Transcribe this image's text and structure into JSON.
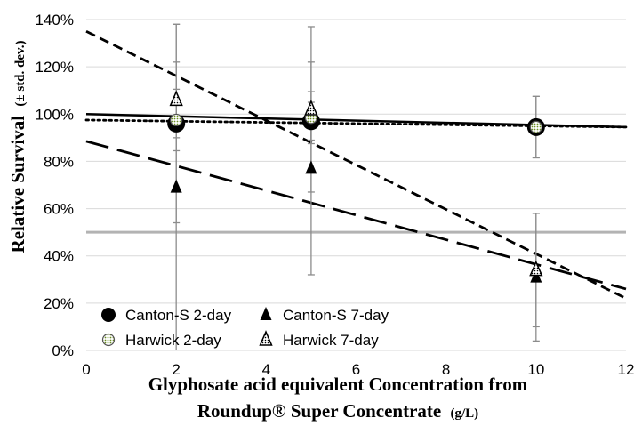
{
  "chart_data": {
    "type": "scatter",
    "title": "",
    "xlabel_line1": "Glyphosate acid equivalent Concentration from",
    "xlabel_line2_main": "Roundup® Super Concentrate",
    "xlabel_line2_unit": "(g/L)",
    "ylabel_main": "Relative Survival",
    "ylabel_unit": "(± std. dev.)",
    "xlim": [
      0,
      12
    ],
    "ylim": [
      0,
      140
    ],
    "x_ticks": [
      "0",
      "2",
      "4",
      "6",
      "8",
      "10",
      "12"
    ],
    "y_ticks": [
      "0%",
      "20%",
      "40%",
      "60%",
      "80%",
      "100%",
      "120%",
      "140%"
    ],
    "grid": "horizontal",
    "legend_position": "bottom-left",
    "reference_line": {
      "y": 50,
      "color": "#b3b3b3"
    },
    "series": [
      {
        "name": "Canton-S 2-day",
        "marker": "filled-circle",
        "color": "#000000",
        "points": [
          {
            "x": 2,
            "y": 96,
            "err": 42
          },
          {
            "x": 5,
            "y": 97,
            "err": 8
          },
          {
            "x": 10,
            "y": 94.5,
            "err": 13
          }
        ],
        "trend": {
          "style": "solid",
          "x": [
            0,
            12
          ],
          "y": [
            100,
            94.5
          ]
        }
      },
      {
        "name": "Canton-S 7-day",
        "marker": "filled-triangle",
        "color": "#000000",
        "points": [
          {
            "x": 2,
            "y": 69,
            "err": 69
          },
          {
            "x": 5,
            "y": 77,
            "err": 45
          },
          {
            "x": 10,
            "y": 31,
            "err": 27
          }
        ],
        "trend": {
          "style": "long-dash",
          "x": [
            0,
            12
          ],
          "y": [
            88.5,
            26
          ]
        }
      },
      {
        "name": "Harwick 2-day",
        "marker": "dotted-circle",
        "color": "#7a9a3a",
        "points": [
          {
            "x": 2,
            "y": 97.5,
            "err": 13
          },
          {
            "x": 5,
            "y": 98.5,
            "err": 11
          },
          {
            "x": 10,
            "y": 94.5,
            "err": 13
          }
        ],
        "trend": {
          "style": "dotted",
          "x": [
            0,
            12
          ],
          "y": [
            97.5,
            94.5
          ]
        }
      },
      {
        "name": "Harwick 7-day",
        "marker": "dotted-triangle",
        "color": "#000000",
        "points": [
          {
            "x": 2,
            "y": 106,
            "err": 16
          },
          {
            "x": 5,
            "y": 102,
            "err": 35
          },
          {
            "x": 10,
            "y": 34,
            "err": 24
          }
        ],
        "trend": {
          "style": "short-dash",
          "x": [
            0,
            12
          ],
          "y": [
            135,
            22
          ]
        }
      }
    ]
  }
}
